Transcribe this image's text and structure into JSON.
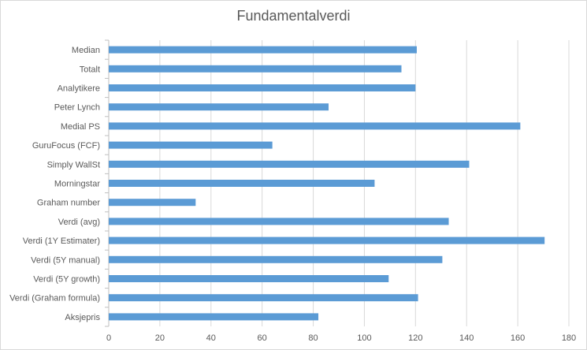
{
  "chart_data": {
    "type": "bar",
    "orientation": "horizontal",
    "title": "Fundamentalverdi",
    "xlabel": "",
    "ylabel": "",
    "xlim": [
      0,
      180
    ],
    "x_ticks": [
      "0",
      "20",
      "40",
      "60",
      "80",
      "100",
      "120",
      "140",
      "160",
      "180"
    ],
    "grid": "vertical",
    "legend": "none",
    "bar_color": "#5b9bd5",
    "categories": [
      "Median",
      "Totalt",
      "Analytikere",
      "Peter Lynch",
      "Medial PS",
      "GuruFocus (FCF)",
      "Simply WallSt",
      "Morningstar",
      "Graham number",
      "Verdi (avg)",
      "Verdi (1Y Estimater)",
      "Verdi (5Y manual)",
      "Verdi (5Y growth)",
      "Verdi (Graham formula)",
      "Aksjepris"
    ],
    "values": [
      120.5,
      114.5,
      120,
      86,
      161,
      64,
      141,
      104,
      34,
      133,
      170.5,
      130.5,
      109.5,
      121,
      82
    ]
  }
}
